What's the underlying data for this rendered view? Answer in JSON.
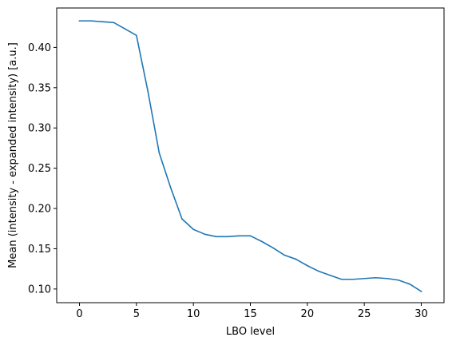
{
  "chart_data": {
    "type": "line",
    "xlabel": "LBO level",
    "ylabel": "Mean (intensity - expanded intensity) [a.u.]",
    "xlim": [
      -2.0,
      32.0
    ],
    "ylim": [
      0.083,
      0.449
    ],
    "xticks": [
      0,
      5,
      10,
      15,
      20,
      25,
      30
    ],
    "yticks": [
      0.1,
      0.15,
      0.2,
      0.25,
      0.3,
      0.35,
      0.4
    ],
    "xtick_labels": [
      "0",
      "5",
      "10",
      "15",
      "20",
      "25",
      "30"
    ],
    "ytick_labels": [
      "0.10",
      "0.15",
      "0.20",
      "0.25",
      "0.30",
      "0.35",
      "0.40"
    ],
    "grid": false,
    "series": [
      {
        "color": "#1f77b4",
        "x": [
          0,
          1,
          2,
          3,
          4,
          5,
          6,
          7,
          8,
          9,
          10,
          11,
          12,
          13,
          14,
          15,
          16,
          17,
          18,
          19,
          20,
          21,
          22,
          23,
          24,
          25,
          26,
          27,
          28,
          29,
          30
        ],
        "values": [
          0.433,
          0.433,
          0.432,
          0.431,
          0.423,
          0.415,
          0.346,
          0.269,
          0.226,
          0.187,
          0.174,
          0.168,
          0.165,
          0.165,
          0.166,
          0.166,
          0.159,
          0.151,
          0.142,
          0.137,
          0.129,
          0.122,
          0.117,
          0.112,
          0.112,
          0.113,
          0.114,
          0.113,
          0.111,
          0.106,
          0.097
        ]
      }
    ]
  }
}
